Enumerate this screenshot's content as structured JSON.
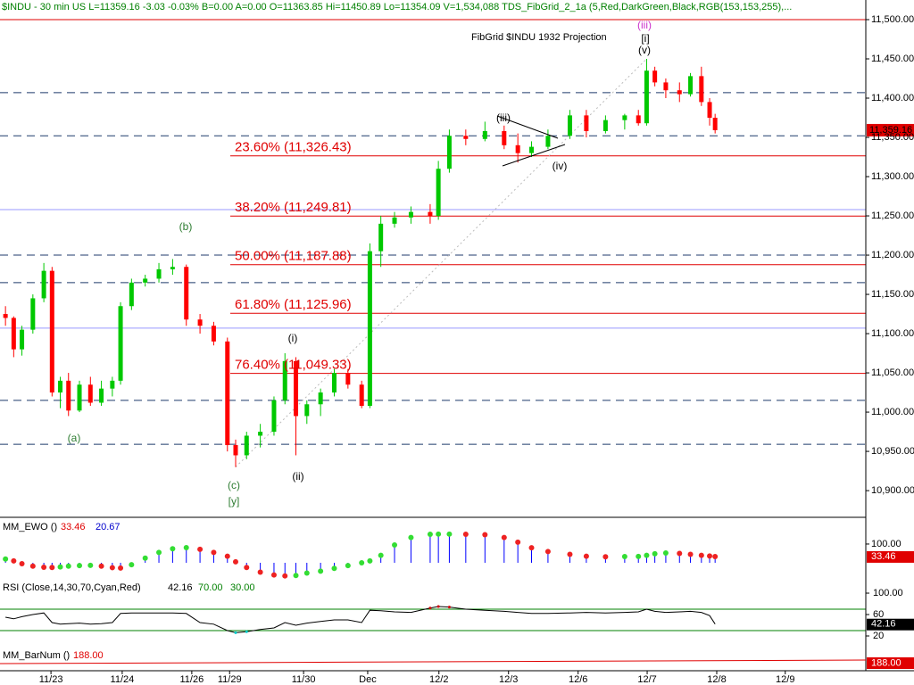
{
  "header": "$INDU - 30 min  US  L=11359.16  -3.03  -0.03%  B=0.00  A=0.00  O=11363.85  Hi=11450.89  Lo=11354.09  V=1,534,088  TDS_FibGrid_2_1a (5,Red,DarkGreen,Black,RGB(153,153,255),...",
  "chart_data": [
    {
      "type": "candlestick",
      "title": "FibGrid $INDU 1932 Projection",
      "x": [
        1,
        2.5,
        4,
        6,
        8,
        9.5,
        11,
        12.5,
        14.5,
        16.5,
        18.5,
        20.5,
        22,
        24,
        26.5,
        29,
        31.5,
        34,
        36.5,
        39,
        41.5,
        43,
        45,
        47.5,
        50,
        52,
        54,
        56,
        58.5,
        61,
        63.5,
        66,
        67.5,
        69.5,
        72,
        75,
        78.5,
        80,
        82,
        85,
        88.5,
        92,
        94.5,
        97,
        100,
        104,
        107,
        110.5,
        114,
        116.5,
        118,
        119.5,
        121.5,
        124,
        126,
        128,
        129.5,
        130.5
      ],
      "open": [
        11125,
        11120,
        11080,
        11105,
        11145,
        11180,
        11025,
        11040,
        11002,
        11035,
        11012,
        11030,
        11040,
        11135,
        11165,
        11170,
        11182,
        11185,
        11118,
        11110,
        11090,
        10958,
        10945,
        10970,
        10975,
        11015,
        11065,
        10995,
        11010,
        11025,
        11050,
        11035,
        11008,
        11205,
        11240,
        11248,
        11255,
        11250,
        11310,
        11352,
        11348,
        11358,
        11340,
        11330,
        11338,
        11352,
        11378,
        11358,
        11372,
        11378,
        11368,
        11435,
        11420,
        11410,
        11405,
        11428,
        11395,
        11375
      ],
      "high": [
        11135,
        11122,
        11110,
        11150,
        11190,
        11185,
        11045,
        11050,
        11040,
        11045,
        11040,
        11045,
        11140,
        11170,
        11175,
        11190,
        11195,
        11188,
        11125,
        11115,
        11095,
        10965,
        10975,
        10985,
        11020,
        11075,
        11070,
        11015,
        11030,
        11055,
        11055,
        11040,
        11215,
        11250,
        11255,
        11262,
        11265,
        11320,
        11360,
        11360,
        11370,
        11365,
        11355,
        11345,
        11360,
        11385,
        11385,
        11378,
        11380,
        11385,
        11450,
        11440,
        11425,
        11420,
        11432,
        11440,
        11400,
        11380
      ],
      "low": [
        11110,
        11070,
        11072,
        11100,
        11140,
        11020,
        11005,
        10995,
        11000,
        11008,
        11008,
        11020,
        11035,
        11130,
        11160,
        11165,
        11175,
        11110,
        11100,
        11085,
        10950,
        10930,
        10940,
        10955,
        10970,
        11010,
        10945,
        10985,
        10995,
        11020,
        11030,
        11005,
        11005,
        11185,
        11235,
        11240,
        11240,
        11245,
        11305,
        11340,
        11345,
        11335,
        11318,
        11325,
        11335,
        11348,
        11350,
        11355,
        11360,
        11365,
        11365,
        11415,
        11400,
        11395,
        11402,
        11390,
        11365,
        11355
      ],
      "close": [
        11120,
        11080,
        11105,
        11145,
        11180,
        11025,
        11040,
        11002,
        11035,
        11012,
        11030,
        11040,
        11135,
        11165,
        11170,
        11182,
        11185,
        11118,
        11110,
        11090,
        10958,
        10945,
        10970,
        10975,
        11015,
        11065,
        10995,
        11010,
        11025,
        11050,
        11035,
        11008,
        11205,
        11240,
        11248,
        11255,
        11250,
        11310,
        11352,
        11348,
        11358,
        11340,
        11330,
        11338,
        11352,
        11378,
        11358,
        11372,
        11378,
        11368,
        11435,
        11420,
        11410,
        11405,
        11428,
        11395,
        11375,
        11359.16
      ],
      "up_color": "#00c800",
      "down_color": "#ff0000",
      "xlim": [
        0,
        158
      ],
      "xticks": [
        {
          "value": 9.3,
          "label": "11/23"
        },
        {
          "value": 22.3,
          "label": "11/24"
        },
        {
          "value": 35,
          "label": "11/26"
        },
        {
          "value": 41.9,
          "label": "11/29"
        },
        {
          "value": 55.4,
          "label": "11/30"
        },
        {
          "value": 67.1,
          "label": "Dec"
        },
        {
          "value": 80.1,
          "label": "12/2"
        },
        {
          "value": 92.8,
          "label": "12/3"
        },
        {
          "value": 105.5,
          "label": "12/6"
        },
        {
          "value": 118.1,
          "label": "12/7"
        },
        {
          "value": 130.8,
          "label": "12/8"
        },
        {
          "value": 143.3,
          "label": "12/9"
        }
      ],
      "ylim": [
        10866,
        11525
      ],
      "yticks": [
        {
          "value": 10900,
          "label": "10,900.00"
        },
        {
          "value": 10950,
          "label": "10,950.00"
        },
        {
          "value": 11000,
          "label": "11,000.00"
        },
        {
          "value": 11050,
          "label": "11,050.00"
        },
        {
          "value": 11100,
          "label": "11,100.00"
        },
        {
          "value": 11150,
          "label": "11,150.00"
        },
        {
          "value": 11200,
          "label": "11,200.00"
        },
        {
          "value": 11250,
          "label": "11,250.00"
        },
        {
          "value": 11300,
          "label": "11,300.00"
        },
        {
          "value": 11350,
          "label": "11,350.00"
        },
        {
          "value": 11400,
          "label": "11,400.00"
        },
        {
          "value": 11450,
          "label": "11,450.00"
        },
        {
          "value": 11500,
          "label": "11,500.00"
        }
      ],
      "last_label": {
        "value": 11359.16,
        "label": "11,359.16"
      },
      "fib_color": "#e00000",
      "fib_levels": [
        {
          "value": 11326.43,
          "label": "23.60% (11,326.43)"
        },
        {
          "value": 11249.81,
          "label": "38.20% (11,249.81)"
        },
        {
          "value": 11187.88,
          "label": "50.00% (11,187.88)"
        },
        {
          "value": 11125.96,
          "label": "61.80% (11,125.96)"
        },
        {
          "value": 11049.33,
          "label": "76.40% (11,049.33)"
        }
      ],
      "top_level": 11500,
      "dashed_levels": [
        11407,
        11352,
        11200,
        11165,
        11015,
        10959
      ],
      "dashed_color": "#1f3a6b",
      "blue_levels": [
        11258,
        11107
      ],
      "blue_color": "#9999ff",
      "wave_labels": [
        {
          "label": "(a)",
          "color": "#2e7d32"
        },
        {
          "label": "(b)",
          "color": "#2e7d32"
        },
        {
          "label": "(c)",
          "color": "#2e7d32"
        },
        {
          "label": "[y]",
          "color": "#2e7d32"
        },
        {
          "label": "(i)",
          "color": "#000000"
        },
        {
          "label": "(ii)",
          "color": "#000000"
        },
        {
          "label": "(iii)",
          "color": "#000000"
        },
        {
          "label": "(iv)",
          "color": "#000000"
        },
        {
          "label": "(v)",
          "color": "#000000"
        },
        {
          "label": "[i]",
          "color": "#000000"
        },
        {
          "label": "(iii)",
          "color": "#cc33cc"
        }
      ]
    },
    {
      "type": "ewo",
      "title": "MM_EWO ()",
      "values": [
        20,
        10,
        -5,
        -18,
        -24,
        -25,
        -22,
        -18,
        -15,
        -14,
        -18,
        -26,
        -28,
        -10,
        25,
        55,
        75,
        81,
        72,
        55,
        35,
        5,
        -25,
        -50,
        -65,
        -70,
        -68,
        -55,
        -45,
        -30,
        -15,
        0,
        10,
        40,
        95,
        135,
        152,
        153,
        153,
        152,
        150,
        135,
        110,
        80,
        60,
        45,
        35,
        32,
        33,
        34,
        40,
        48,
        52,
        50,
        45,
        40,
        36,
        33.46
      ],
      "readouts": [
        {
          "value": 33.46,
          "color": "#e00000"
        },
        {
          "value": 20.67,
          "color": "#0000cc"
        }
      ],
      "ylim": [
        -81,
        233
      ],
      "yticks": [
        {
          "value": 100,
          "label": "100.00"
        }
      ],
      "up_color": "#33dd33",
      "down_color": "#ee2222",
      "hist_color": "#0000ff"
    },
    {
      "type": "rsi",
      "title": "RSI (Close,14,30,70,Cyan,Red)",
      "values": [
        55,
        52,
        56,
        60,
        63,
        45,
        42,
        43,
        44,
        42,
        43,
        45,
        62,
        63,
        63,
        63,
        63,
        62,
        45,
        42,
        30,
        26,
        28,
        32,
        35,
        45,
        40,
        44,
        47,
        50,
        50,
        45,
        68,
        67,
        65,
        64,
        72,
        75,
        74,
        70,
        68,
        66,
        64,
        62,
        62,
        63,
        64,
        63,
        64,
        65,
        70,
        66,
        64,
        65,
        66,
        64,
        58,
        42.16
      ],
      "readouts": [
        {
          "value": 42.16,
          "color": "#000000"
        },
        {
          "value": 70,
          "label": "70.00",
          "color": "#008000"
        },
        {
          "value": 30,
          "label": "30.00",
          "color": "#008000"
        }
      ],
      "ylim": [
        5,
        121.7
      ],
      "yticks": [
        {
          "value": 100,
          "label": "100.00"
        },
        60,
        20
      ],
      "line_color": "#000000",
      "band_color": "#008000",
      "high_color": "#cc0000",
      "low_color": "#00cccc"
    },
    {
      "type": "barnum",
      "title": "MM_BarNum ()",
      "readouts": [
        {
          "value": 188,
          "label": "188.00",
          "color": "#e00000"
        }
      ]
    }
  ]
}
